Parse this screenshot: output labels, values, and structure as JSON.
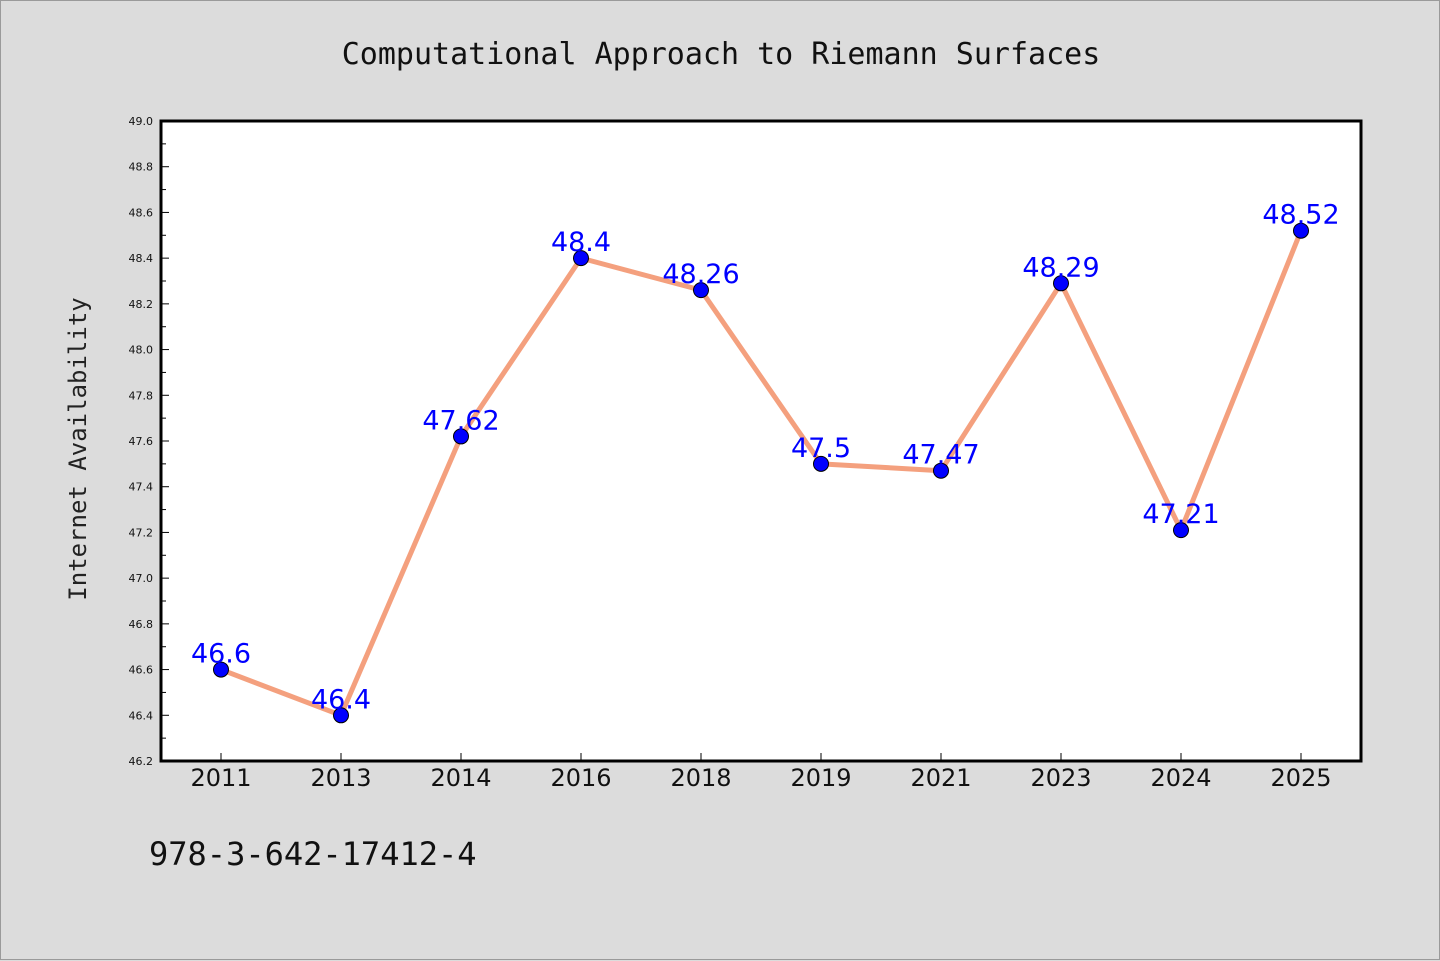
{
  "chart_data": {
    "type": "line",
    "title": "Computational Approach to Riemann Surfaces",
    "ylabel": "Internet Availability",
    "xlabel": "",
    "categories": [
      "2011",
      "2013",
      "2014",
      "2016",
      "2018",
      "2019",
      "2021",
      "2023",
      "2024",
      "2025"
    ],
    "series": [
      {
        "values": [
          46.6,
          46.4,
          47.62,
          48.4,
          48.26,
          47.5,
          47.47,
          48.29,
          47.21,
          48.52
        ],
        "data_labels": [
          "46.6",
          "46.4",
          "47.62",
          "48.4",
          "48.26",
          "47.5",
          "47.47",
          "48.29",
          "47.21",
          "48.52"
        ],
        "line_color": "#f4a07e",
        "marker_color": "#0000ff"
      }
    ],
    "ylim": [
      46.2,
      49.0
    ],
    "yticks": [
      "46.2",
      "46.4",
      "46.6",
      "46.8",
      "47.0",
      "47.2",
      "47.4",
      "47.6",
      "47.8",
      "48.0",
      "48.2",
      "48.4",
      "48.6",
      "48.8",
      "49.0"
    ],
    "grid": false,
    "legend": "none"
  },
  "footer": {
    "isbn": "978-3-642-17412-4"
  },
  "colors": {
    "background": "#dcdcdc",
    "plot_background": "#ffffff",
    "line": "#f4a07e",
    "marker": "#0000ff",
    "label": "#0000ff"
  }
}
